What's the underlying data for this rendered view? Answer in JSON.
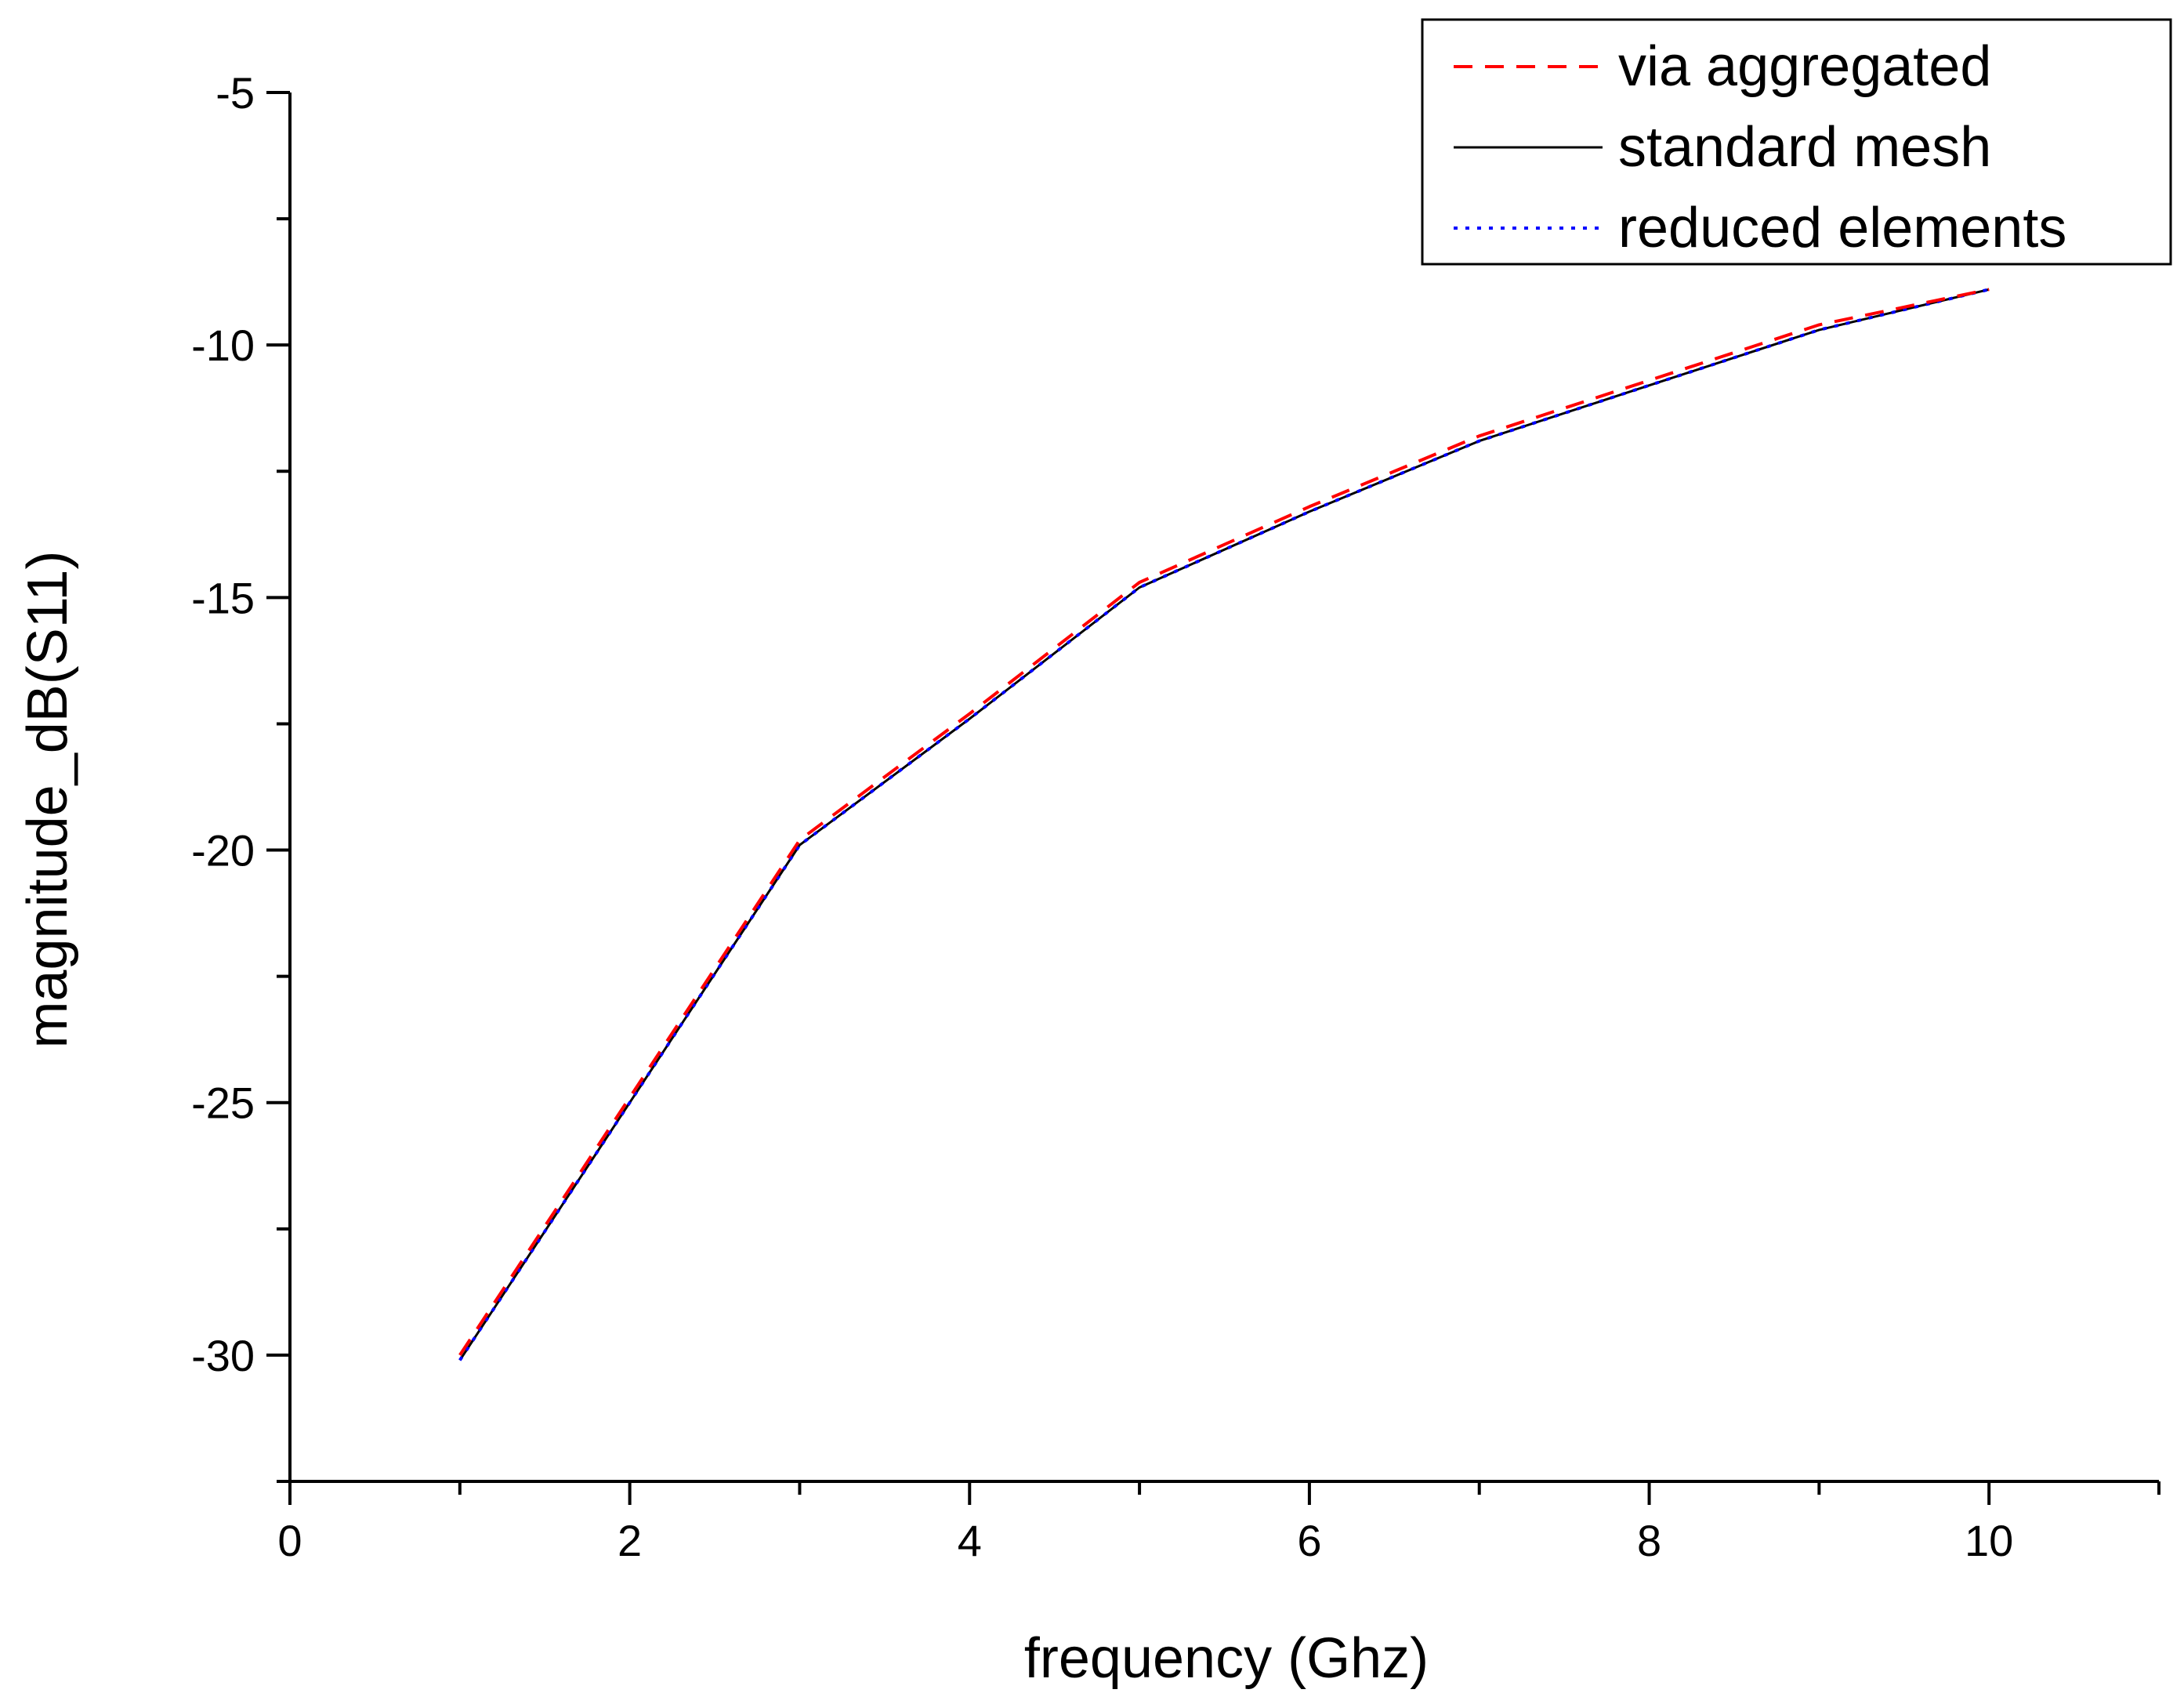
{
  "chart_data": {
    "type": "line",
    "title": "",
    "xlabel": "frequency (Ghz)",
    "ylabel": "magnitude_dB(S11)",
    "xlim": [
      0,
      11
    ],
    "ylim": [
      -32.5,
      -5
    ],
    "x_ticks": [
      0,
      2,
      4,
      6,
      8,
      10
    ],
    "x_tick_labels": [
      "0",
      "2",
      "4",
      "6",
      "8",
      "10"
    ],
    "y_ticks": [
      -5,
      -10,
      -15,
      -20,
      -25,
      -30
    ],
    "y_tick_labels": [
      "-5",
      "-10",
      "-15",
      "-20",
      "-25",
      "-30"
    ],
    "grid": false,
    "legend_position": "top-right",
    "x": [
      1,
      2,
      3,
      4,
      5,
      6,
      7,
      8,
      9,
      10
    ],
    "series": [
      {
        "name": "via aggregated",
        "style": "dashed",
        "color": "#ff0000",
        "values": [
          -30.0,
          -24.9,
          -19.8,
          -17.3,
          -14.7,
          -13.2,
          -11.8,
          -10.7,
          -9.6,
          -8.9
        ]
      },
      {
        "name": "standard mesh",
        "style": "solid",
        "color": "#000000",
        "values": [
          -30.1,
          -25.0,
          -19.9,
          -17.4,
          -14.8,
          -13.3,
          -11.9,
          -10.8,
          -9.7,
          -8.9
        ]
      },
      {
        "name": "reduced elements",
        "style": "dotted",
        "color": "#0000ff",
        "values": [
          -30.1,
          -25.0,
          -19.9,
          -17.4,
          -14.8,
          -13.3,
          -11.9,
          -10.8,
          -9.7,
          -8.9
        ]
      }
    ]
  }
}
